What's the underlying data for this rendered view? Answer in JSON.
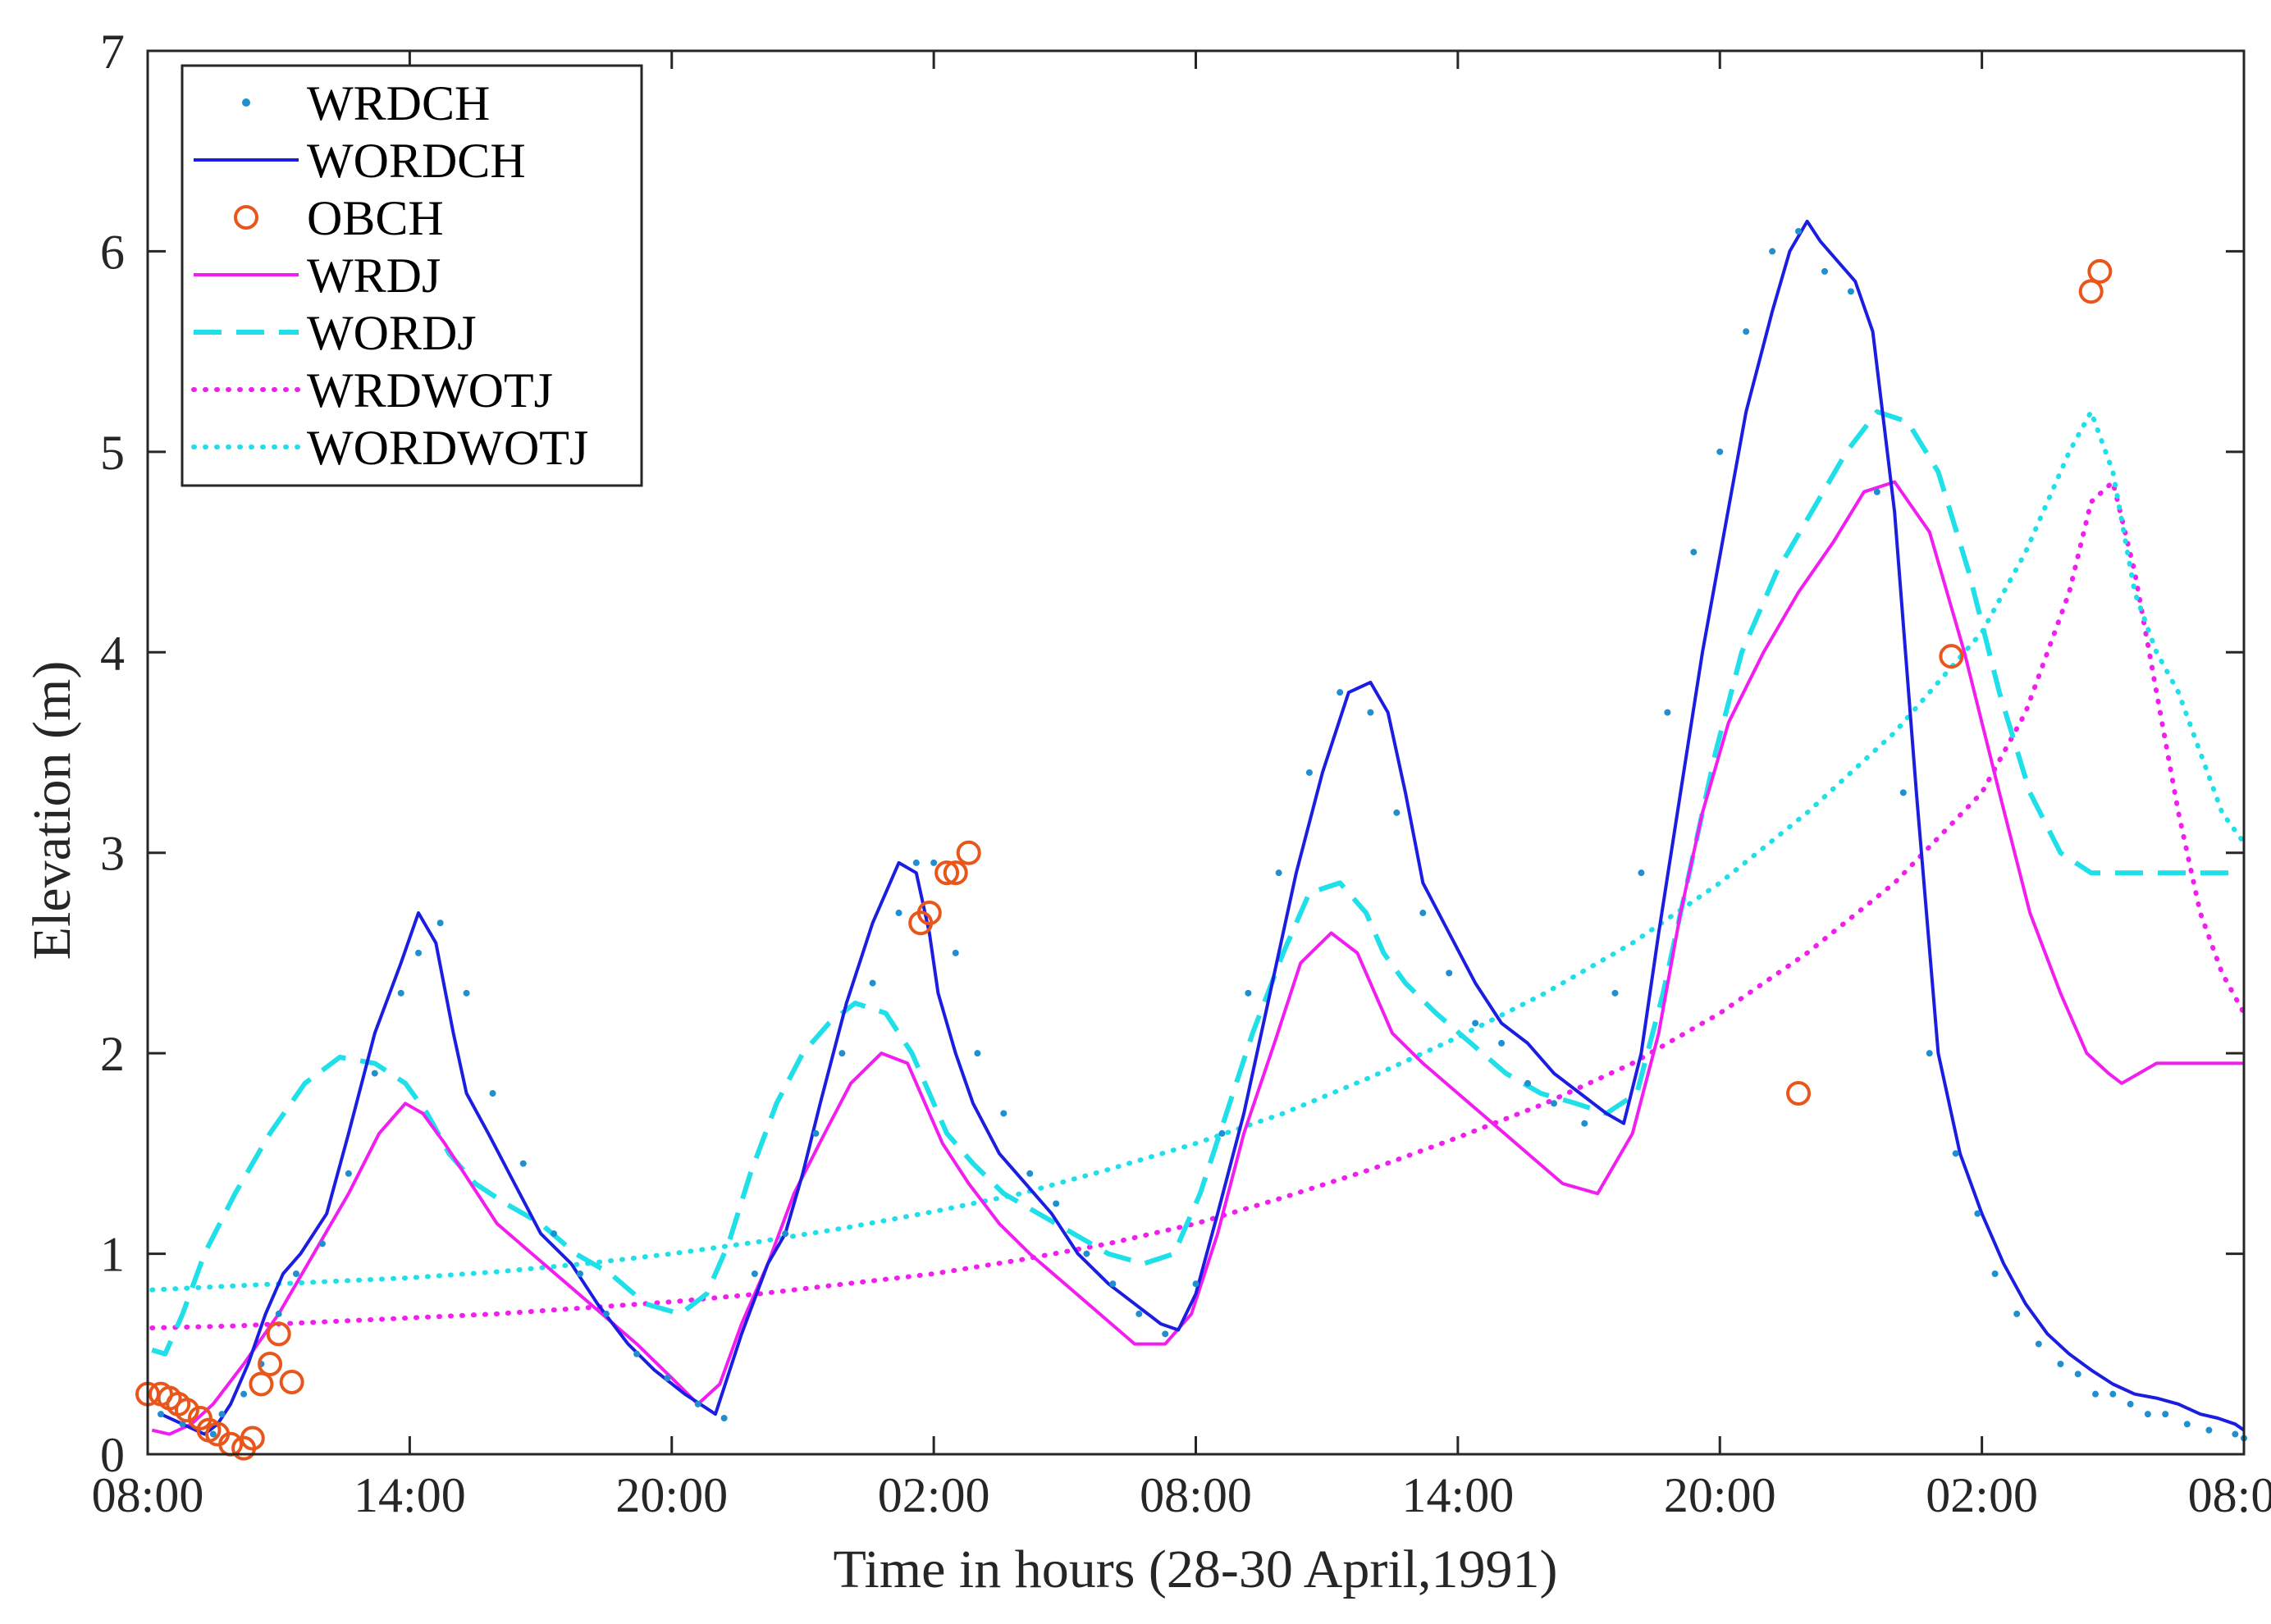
{
  "chart_data": {
    "type": "line",
    "title": "",
    "xlabel": "Time in hours (28-30 April,1991)",
    "ylabel": "Elevation (m)",
    "xlim": [
      0,
      48
    ],
    "ylim": [
      0,
      7
    ],
    "xticks": [
      0,
      6,
      12,
      18,
      24,
      30,
      36,
      42,
      48
    ],
    "xtick_labels": [
      "08:00",
      "14:00",
      "20:00",
      "02:00",
      "08:00",
      "14:00",
      "20:00",
      "02:00",
      "08:00"
    ],
    "yticks": [
      0,
      1,
      2,
      3,
      4,
      5,
      6,
      7
    ],
    "ytick_labels": [
      "0",
      "1",
      "2",
      "3",
      "4",
      "5",
      "6",
      "7"
    ],
    "legend_position": "top-left",
    "series": [
      {
        "name": "WRDCH",
        "color": "#1f8fd0",
        "style": "dots",
        "x": [
          0.3,
          0.8,
          1.5,
          1.7,
          2.2,
          2.6,
          3.0,
          3.4,
          4.0,
          4.6,
          5.2,
          5.8,
          6.2,
          6.7,
          7.3,
          7.9,
          8.6,
          9.3,
          9.9,
          10.5,
          11.2,
          11.9,
          12.6,
          13.2,
          13.9,
          14.6,
          15.3,
          15.9,
          16.6,
          17.2,
          17.6,
          18.0,
          18.5,
          19.0,
          19.6,
          20.2,
          20.8,
          21.5,
          22.1,
          22.7,
          23.3,
          24.0,
          24.6,
          25.2,
          25.9,
          26.6,
          27.3,
          28.0,
          28.6,
          29.2,
          29.8,
          30.4,
          31.0,
          31.6,
          32.2,
          32.9,
          33.6,
          34.2,
          34.8,
          35.4,
          36.0,
          36.6,
          37.2,
          37.8,
          38.4,
          39.0,
          39.6,
          40.2,
          40.8,
          41.4,
          41.9,
          42.3,
          42.8,
          43.3,
          43.8,
          44.2,
          44.6,
          45.0,
          45.4,
          45.8,
          46.2,
          46.7,
          47.2,
          47.8,
          48.0
        ],
        "y": [
          0.2,
          0.15,
          0.1,
          0.2,
          0.3,
          0.45,
          0.7,
          0.9,
          1.05,
          1.4,
          1.9,
          2.3,
          2.5,
          2.65,
          2.3,
          1.8,
          1.45,
          1.1,
          0.9,
          0.7,
          0.5,
          0.38,
          0.25,
          0.18,
          0.9,
          1.1,
          1.6,
          2.0,
          2.35,
          2.7,
          2.95,
          2.95,
          2.5,
          2.0,
          1.7,
          1.4,
          1.25,
          1.0,
          0.85,
          0.7,
          0.6,
          0.85,
          1.6,
          2.3,
          2.9,
          3.4,
          3.8,
          3.7,
          3.2,
          2.7,
          2.4,
          2.15,
          2.05,
          1.85,
          1.75,
          1.65,
          2.3,
          2.9,
          3.7,
          4.5,
          5.0,
          5.6,
          6.0,
          6.1,
          5.9,
          5.8,
          4.8,
          3.3,
          2.0,
          1.5,
          1.2,
          0.9,
          0.7,
          0.55,
          0.45,
          0.4,
          0.3,
          0.3,
          0.25,
          0.2,
          0.2,
          0.15,
          0.12,
          0.1,
          0.08
        ]
      },
      {
        "name": "WORDCH",
        "color": "#1b1ee0",
        "style": "solid",
        "x": [
          0.3,
          0.8,
          1.3,
          1.6,
          1.9,
          2.3,
          2.7,
          3.1,
          3.5,
          4.1,
          4.6,
          5.2,
          5.8,
          6.2,
          6.6,
          7.0,
          7.3,
          7.8,
          8.4,
          9.0,
          9.7,
          10.3,
          11.0,
          11.6,
          12.3,
          13.0,
          13.6,
          14.2,
          14.6,
          15.0,
          15.4,
          16.0,
          16.6,
          17.2,
          17.6,
          17.9,
          18.1,
          18.5,
          18.9,
          19.5,
          20.1,
          20.7,
          21.3,
          22.0,
          22.6,
          23.2,
          23.6,
          24.0,
          24.5,
          25.1,
          25.7,
          26.3,
          26.9,
          27.5,
          28.0,
          28.4,
          28.8,
          29.2,
          29.8,
          30.4,
          31.0,
          31.6,
          32.2,
          32.8,
          33.4,
          33.8,
          34.2,
          34.6,
          35.1,
          35.6,
          36.1,
          36.6,
          37.2,
          37.6,
          38.0,
          38.3,
          38.7,
          39.1,
          39.5,
          40.0,
          40.5,
          41.0,
          41.5,
          42.0,
          42.5,
          43.0,
          43.5,
          44.0,
          44.5,
          45.0,
          45.5,
          46.0,
          46.5,
          47.0,
          47.4,
          47.8,
          48.0
        ],
        "y": [
          0.2,
          0.15,
          0.1,
          0.15,
          0.25,
          0.45,
          0.7,
          0.9,
          1.0,
          1.2,
          1.6,
          2.1,
          2.45,
          2.7,
          2.55,
          2.1,
          1.8,
          1.6,
          1.35,
          1.1,
          0.95,
          0.75,
          0.55,
          0.42,
          0.3,
          0.2,
          0.6,
          0.95,
          1.1,
          1.4,
          1.75,
          2.25,
          2.65,
          2.95,
          2.9,
          2.6,
          2.3,
          2.0,
          1.75,
          1.5,
          1.35,
          1.2,
          1.0,
          0.85,
          0.75,
          0.65,
          0.62,
          0.8,
          1.2,
          1.7,
          2.3,
          2.9,
          3.4,
          3.8,
          3.85,
          3.7,
          3.3,
          2.85,
          2.6,
          2.35,
          2.15,
          2.05,
          1.9,
          1.8,
          1.7,
          1.65,
          2.0,
          2.6,
          3.3,
          4.0,
          4.6,
          5.2,
          5.7,
          6.0,
          6.15,
          6.05,
          5.95,
          5.85,
          5.6,
          4.7,
          3.3,
          2.0,
          1.5,
          1.2,
          0.95,
          0.75,
          0.6,
          0.5,
          0.42,
          0.35,
          0.3,
          0.28,
          0.25,
          0.2,
          0.18,
          0.15,
          0.12
        ]
      },
      {
        "name": "OBCH",
        "color": "#e8561c",
        "style": "circles",
        "x": [
          0.0,
          0.3,
          0.5,
          0.7,
          0.9,
          1.2,
          1.4,
          1.6,
          1.9,
          2.2,
          2.4,
          2.6,
          2.8,
          3.0,
          3.3,
          17.7,
          17.9,
          18.3,
          18.5,
          18.8,
          37.8,
          41.3,
          44.5,
          44.7
        ],
        "y": [
          0.3,
          0.3,
          0.28,
          0.25,
          0.22,
          0.18,
          0.12,
          0.1,
          0.05,
          0.03,
          0.08,
          0.35,
          0.45,
          0.6,
          0.36,
          2.65,
          2.7,
          2.9,
          2.9,
          3.0,
          1.8,
          3.98,
          5.8,
          5.9
        ]
      },
      {
        "name": "WRDJ",
        "color": "#f21ef0",
        "style": "solid",
        "x": [
          0.1,
          0.5,
          1.0,
          1.5,
          2.2,
          3.0,
          3.8,
          4.6,
          5.3,
          5.9,
          6.3,
          6.8,
          7.4,
          8.0,
          8.8,
          9.6,
          10.4,
          11.2,
          12.0,
          12.6,
          13.1,
          13.6,
          14.2,
          14.8,
          15.5,
          16.1,
          16.8,
          17.4,
          17.8,
          18.2,
          18.8,
          19.5,
          20.2,
          21.0,
          21.8,
          22.6,
          23.3,
          23.9,
          24.5,
          25.1,
          25.8,
          26.4,
          27.1,
          27.7,
          28.1,
          28.5,
          29.2,
          30.0,
          30.8,
          31.6,
          32.4,
          33.2,
          34.0,
          34.6,
          35.1,
          35.6,
          36.2,
          37.0,
          37.8,
          38.6,
          39.3,
          40.0,
          40.8,
          41.6,
          42.4,
          43.1,
          43.8,
          44.4,
          44.9,
          45.2,
          45.6,
          46.0,
          46.5,
          47.0,
          47.5,
          48.0
        ],
        "y": [
          0.12,
          0.1,
          0.15,
          0.25,
          0.45,
          0.7,
          1.0,
          1.3,
          1.6,
          1.75,
          1.7,
          1.55,
          1.35,
          1.15,
          1.0,
          0.85,
          0.7,
          0.55,
          0.38,
          0.25,
          0.35,
          0.65,
          0.95,
          1.3,
          1.6,
          1.85,
          2.0,
          1.95,
          1.75,
          1.55,
          1.35,
          1.15,
          1.0,
          0.85,
          0.7,
          0.55,
          0.55,
          0.7,
          1.1,
          1.6,
          2.05,
          2.45,
          2.6,
          2.5,
          2.3,
          2.1,
          1.95,
          1.8,
          1.65,
          1.5,
          1.35,
          1.3,
          1.6,
          2.1,
          2.7,
          3.2,
          3.65,
          4.0,
          4.3,
          4.55,
          4.8,
          4.85,
          4.6,
          4.0,
          3.3,
          2.7,
          2.3,
          2.0,
          1.9,
          1.85,
          1.9,
          1.95,
          1.95,
          1.95,
          1.95,
          1.95
        ]
      },
      {
        "name": "WORDJ",
        "color": "#1fdfe8",
        "style": "dashed",
        "x": [
          0.1,
          0.4,
          0.8,
          1.3,
          2.0,
          2.8,
          3.6,
          4.4,
          5.2,
          5.9,
          6.4,
          6.9,
          7.5,
          8.2,
          9.0,
          9.8,
          10.6,
          11.4,
          12.2,
          12.8,
          13.3,
          13.8,
          14.4,
          15.0,
          15.6,
          16.2,
          16.9,
          17.5,
          17.9,
          18.3,
          18.9,
          19.6,
          20.4,
          21.2,
          22.0,
          22.8,
          23.5,
          24.1,
          24.7,
          25.3,
          26.0,
          26.6,
          27.3,
          27.9,
          28.3,
          28.8,
          29.5,
          30.3,
          31.1,
          31.9,
          32.7,
          33.4,
          34.1,
          34.7,
          35.3,
          35.9,
          36.5,
          37.3,
          38.1,
          38.9,
          39.6,
          40.3,
          41.0,
          41.7,
          42.4,
          43.1,
          43.8,
          44.5,
          45.1,
          45.7,
          46.3,
          46.9,
          47.5,
          48.0
        ],
        "y": [
          0.52,
          0.5,
          0.7,
          1.0,
          1.3,
          1.6,
          1.85,
          1.98,
          1.95,
          1.85,
          1.7,
          1.5,
          1.35,
          1.25,
          1.15,
          1.0,
          0.9,
          0.75,
          0.7,
          0.8,
          1.05,
          1.4,
          1.75,
          2.0,
          2.15,
          2.25,
          2.2,
          2.0,
          1.8,
          1.6,
          1.45,
          1.3,
          1.2,
          1.1,
          1.0,
          0.95,
          1.0,
          1.3,
          1.7,
          2.1,
          2.5,
          2.8,
          2.85,
          2.7,
          2.5,
          2.35,
          2.2,
          2.05,
          1.9,
          1.8,
          1.75,
          1.7,
          1.8,
          2.3,
          2.9,
          3.5,
          4.0,
          4.4,
          4.7,
          5.0,
          5.2,
          5.15,
          4.9,
          4.4,
          3.8,
          3.3,
          3.0,
          2.9,
          2.9,
          2.9,
          2.9,
          2.9,
          2.9,
          2.9
        ]
      },
      {
        "name": "WRDWOTJ",
        "color": "#f21ef0",
        "style": "dotted",
        "x": [
          0.1,
          2.0,
          4.0,
          6.0,
          8.0,
          10.0,
          12.0,
          14.0,
          16.0,
          18.0,
          20.0,
          22.0,
          24.0,
          26.0,
          28.0,
          30.0,
          32.0,
          34.0,
          36.0,
          38.0,
          40.0,
          42.0,
          43.0,
          44.0,
          44.5,
          45.0,
          45.5,
          46.0,
          46.5,
          47.0,
          47.5,
          48.0
        ],
        "y": [
          0.63,
          0.64,
          0.66,
          0.68,
          0.7,
          0.73,
          0.76,
          0.8,
          0.85,
          0.9,
          0.97,
          1.05,
          1.15,
          1.28,
          1.42,
          1.58,
          1.75,
          1.95,
          2.2,
          2.5,
          2.85,
          3.3,
          3.7,
          4.3,
          4.75,
          4.85,
          4.4,
          3.8,
          3.2,
          2.7,
          2.4,
          2.2
        ]
      },
      {
        "name": "WORDWOTJ",
        "color": "#1fdfe8",
        "style": "dotted",
        "x": [
          0.1,
          2.0,
          4.0,
          6.0,
          8.0,
          10.0,
          12.0,
          14.0,
          16.0,
          18.0,
          20.0,
          22.0,
          24.0,
          26.0,
          28.0,
          30.0,
          32.0,
          34.0,
          36.0,
          38.0,
          40.0,
          42.0,
          43.0,
          44.0,
          44.5,
          45.0,
          45.5,
          46.0,
          46.5,
          47.0,
          47.5,
          48.0
        ],
        "y": [
          0.82,
          0.84,
          0.86,
          0.88,
          0.91,
          0.95,
          1.0,
          1.06,
          1.13,
          1.21,
          1.3,
          1.42,
          1.55,
          1.7,
          1.88,
          2.08,
          2.3,
          2.55,
          2.85,
          3.2,
          3.6,
          4.1,
          4.5,
          5.0,
          5.2,
          4.9,
          4.3,
          4.0,
          3.8,
          3.5,
          3.2,
          3.05
        ]
      }
    ]
  }
}
